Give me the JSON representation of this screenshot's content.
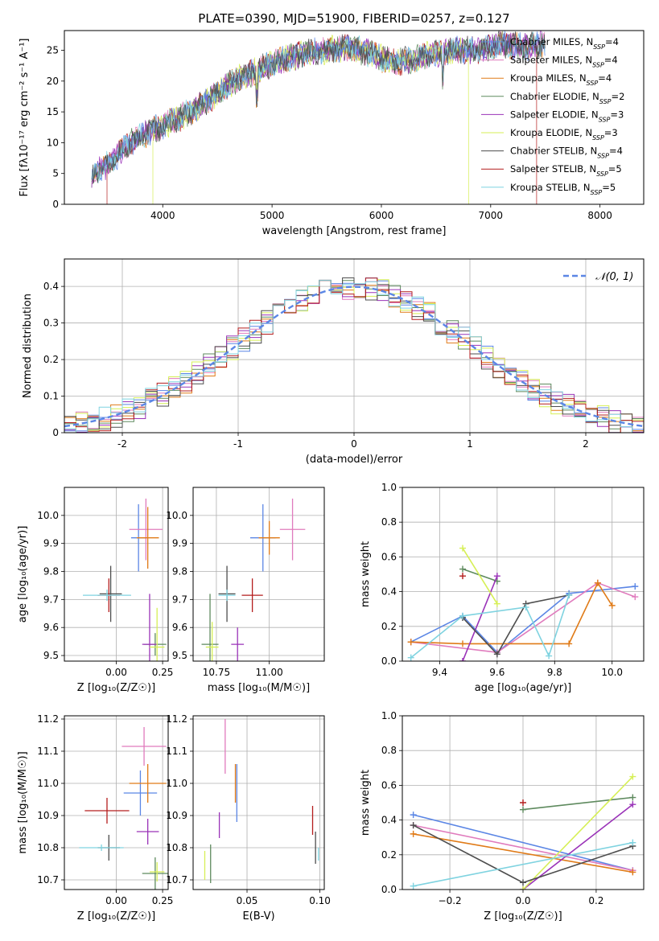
{
  "figure_title": "PLATE=0390, MJD=51900, FIBERID=0257, z=0.127",
  "colors": {
    "Chabrier MILES": "#5b86e5",
    "Salpeter MILES": "#e07bbd",
    "Kroupa MILES": "#e07b18",
    "Chabrier ELODIE": "#5e8a5e",
    "Salpeter ELODIE": "#9a33b8",
    "Kroupa ELODIE": "#d6ef56",
    "Chabrier STELIB": "#4d4d4d",
    "Salpeter STELIB": "#b41d1d",
    "Kroupa STELIB": "#7fd3e0"
  },
  "chart_data": [
    {
      "id": "spectrum",
      "type": "line",
      "title": "PLATE=0390, MJD=51900, FIBERID=0257, z=0.127",
      "xlabel": "wavelength [Angstrom, rest frame]",
      "ylabel": "Flux [fλ10⁻¹⁷ erg cm⁻² s⁻¹ A⁻¹]",
      "xlim": [
        3100,
        8400
      ],
      "ylim": [
        0,
        28.2
      ],
      "xticks": [
        4000,
        5000,
        6000,
        7000,
        8000
      ],
      "yticks": [
        0,
        5,
        10,
        15,
        20,
        25
      ],
      "grid": false,
      "legend_position": "top-right",
      "continuum": {
        "x": [
          3350,
          3500,
          3700,
          3900,
          4100,
          4300,
          4500,
          4700,
          4900,
          5100,
          5300,
          5500,
          5700,
          5900,
          6100,
          6300,
          6500,
          6700,
          6900,
          7100,
          7300,
          7500
        ],
        "y": [
          5,
          6.5,
          10,
          12,
          13.5,
          15.5,
          18,
          20.5,
          22,
          23.5,
          24.5,
          25,
          25.5,
          24.5,
          23,
          23.5,
          24.5,
          25,
          25,
          26,
          25.5,
          26
        ]
      },
      "cutoffs": {
        "Kroupa ELODIE": [
          3910,
          6800
        ],
        "Salpeter STELIB": [
          3490,
          7420
        ]
      },
      "series": [
        {
          "name": "Chabrier MILES",
          "n_ssp": "4"
        },
        {
          "name": "Salpeter MILES",
          "n_ssp": "4"
        },
        {
          "name": "Kroupa MILES",
          "n_ssp": "4"
        },
        {
          "name": "Chabrier ELODIE",
          "n_ssp": "2"
        },
        {
          "name": "Salpeter ELODIE",
          "n_ssp": "3"
        },
        {
          "name": "Kroupa ELODIE",
          "n_ssp": "3"
        },
        {
          "name": "Chabrier STELIB",
          "n_ssp": "4"
        },
        {
          "name": "Salpeter STELIB",
          "n_ssp": "5"
        },
        {
          "name": "Kroupa STELIB",
          "n_ssp": "5"
        }
      ]
    },
    {
      "id": "residuals",
      "type": "line",
      "xlabel": "(data-model)/error",
      "ylabel": "Normed distribution",
      "xlim": [
        -2.5,
        2.5
      ],
      "ylim": [
        0,
        0.475
      ],
      "xticks": [
        -2,
        -1,
        0,
        1,
        2
      ],
      "yticks": [
        0.0,
        0.1,
        0.2,
        0.3,
        0.4
      ],
      "grid": true,
      "legend_position": "top-right",
      "reference": {
        "name": "𝒩(0, 1)",
        "mean": 0,
        "sigma": 1
      },
      "hist": {
        "bin_width": 0.1,
        "xmin": -2.5,
        "xmax": 2.5
      }
    },
    {
      "id": "age_vs_Z",
      "type": "scatter",
      "xlabel": "Z [log₁₀(Z/Z☉)]",
      "ylabel": "age  [log₁₀(age/yr)]",
      "xlim": [
        -0.28,
        0.28
      ],
      "ylim": [
        9.48,
        10.1
      ],
      "xticks": [
        "0.00",
        "0.25"
      ],
      "yticks": [
        "9.5",
        "9.6",
        "9.7",
        "9.8",
        "9.9",
        "10.0"
      ],
      "grid": true,
      "points": [
        {
          "series": "Chabrier MILES",
          "x": 0.12,
          "y": 9.92,
          "xerr": 0.04,
          "yerr": 0.12
        },
        {
          "series": "Salpeter MILES",
          "x": 0.16,
          "y": 9.95,
          "xerr": 0.09,
          "yerr": 0.11
        },
        {
          "series": "Kroupa MILES",
          "x": 0.17,
          "y": 9.92,
          "xerr": 0.06,
          "yerr": 0.11
        },
        {
          "series": "Chabrier ELODIE",
          "x": 0.21,
          "y": 9.54,
          "xerr": 0.06,
          "yerr": 0.04
        },
        {
          "series": "Salpeter ELODIE",
          "x": 0.18,
          "y": 9.54,
          "xerr": 0.04,
          "yerr": 0.18
        },
        {
          "series": "Kroupa ELODIE",
          "x": 0.22,
          "y": 9.53,
          "xerr": 0.04,
          "yerr": 0.14
        },
        {
          "series": "Chabrier STELIB",
          "x": -0.03,
          "y": 9.72,
          "xerr": 0.06,
          "yerr": 0.1
        },
        {
          "series": "Salpeter STELIB",
          "x": -0.04,
          "y": 9.715,
          "xerr": 0.06,
          "yerr": 0.06
        },
        {
          "series": "Kroupa STELIB",
          "x": -0.05,
          "y": 9.715,
          "xerr": 0.13,
          "yerr": 0.02
        }
      ]
    },
    {
      "id": "age_vs_mass",
      "type": "scatter",
      "xlabel": "mass [log₁₀(M/M☉)]",
      "ylabel": "",
      "xlim": [
        10.64,
        11.26
      ],
      "ylim": [
        9.48,
        10.1
      ],
      "xticks": [
        "10.75",
        "11.00"
      ],
      "yticks": [
        "9.5",
        "9.6",
        "9.7",
        "9.8",
        "9.9",
        "10.0"
      ],
      "grid": true,
      "points": [
        {
          "series": "Chabrier MILES",
          "x": 10.97,
          "y": 9.92,
          "xerr": 0.06,
          "yerr": 0.12
        },
        {
          "series": "Salpeter MILES",
          "x": 11.11,
          "y": 9.95,
          "xerr": 0.06,
          "yerr": 0.11
        },
        {
          "series": "Kroupa MILES",
          "x": 11.0,
          "y": 9.92,
          "xerr": 0.05,
          "yerr": 0.06
        },
        {
          "series": "Chabrier ELODIE",
          "x": 10.72,
          "y": 9.54,
          "xerr": 0.04,
          "yerr": 0.18
        },
        {
          "series": "Salpeter ELODIE",
          "x": 10.85,
          "y": 9.54,
          "xerr": 0.03,
          "yerr": 0.06
        },
        {
          "series": "Kroupa ELODIE",
          "x": 10.73,
          "y": 9.53,
          "xerr": 0.03,
          "yerr": 0.09
        },
        {
          "series": "Chabrier STELIB",
          "x": 10.8,
          "y": 9.72,
          "xerr": 0.04,
          "yerr": 0.1
        },
        {
          "series": "Salpeter STELIB",
          "x": 10.92,
          "y": 9.715,
          "xerr": 0.05,
          "yerr": 0.06
        },
        {
          "series": "Kroupa STELIB",
          "x": 10.8,
          "y": 9.715,
          "xerr": 0.04,
          "yerr": 0.02
        }
      ]
    },
    {
      "id": "weight_vs_age",
      "type": "line",
      "xlabel": "age  [log₁₀(age/yr)]",
      "ylabel": "mass weight",
      "xlim": [
        9.27,
        10.11
      ],
      "ylim": [
        0,
        1.0
      ],
      "xticks": [
        "9.4",
        "9.6",
        "9.8",
        "10.0"
      ],
      "yticks": [
        "0.0",
        "0.2",
        "0.4",
        "0.6",
        "0.8",
        "1.0"
      ],
      "grid": true,
      "series": [
        {
          "name": "Chabrier MILES",
          "x": [
            9.3,
            9.48,
            9.6,
            9.85,
            10.08
          ],
          "y": [
            0.11,
            0.26,
            0.05,
            0.39,
            0.43
          ]
        },
        {
          "name": "Salpeter MILES",
          "x": [
            9.3,
            9.6,
            9.95,
            10.08
          ],
          "y": [
            0.11,
            0.05,
            0.45,
            0.37
          ]
        },
        {
          "name": "Kroupa MILES",
          "x": [
            9.3,
            9.48,
            9.85,
            9.95,
            10.0
          ],
          "y": [
            0.11,
            0.1,
            0.1,
            0.45,
            0.32
          ]
        },
        {
          "name": "Chabrier ELODIE",
          "x": [
            9.48,
            9.6
          ],
          "y": [
            0.53,
            0.46
          ]
        },
        {
          "name": "Salpeter ELODIE",
          "x": [
            9.48,
            9.6
          ],
          "y": [
            0.0,
            0.49
          ]
        },
        {
          "name": "Kroupa ELODIE",
          "x": [
            9.48,
            9.6
          ],
          "y": [
            0.65,
            0.33
          ]
        },
        {
          "name": "Chabrier STELIB",
          "x": [
            9.48,
            9.6,
            9.7,
            9.85
          ],
          "y": [
            0.25,
            0.04,
            0.33,
            0.38
          ]
        },
        {
          "name": "Salpeter STELIB",
          "x": [
            9.48
          ],
          "y": [
            0.49
          ]
        },
        {
          "name": "Kroupa STELIB",
          "x": [
            9.3,
            9.48,
            9.7,
            9.78,
            9.85
          ],
          "y": [
            0.02,
            0.26,
            0.31,
            0.03,
            0.38
          ]
        }
      ]
    },
    {
      "id": "mass_vs_Z",
      "type": "scatter",
      "xlabel": "Z [log₁₀(Z/Z☉)]",
      "ylabel": "mass [log₁₀(M/M☉)]",
      "xlim": [
        -0.28,
        0.28
      ],
      "ylim": [
        10.67,
        11.21
      ],
      "xticks": [
        "0.00",
        "0.25"
      ],
      "yticks": [
        "10.7",
        "10.8",
        "10.9",
        "11.0",
        "11.1",
        "11.2"
      ],
      "grid": true,
      "points": [
        {
          "series": "Chabrier MILES",
          "x": 0.13,
          "y": 10.97,
          "xerr": 0.09,
          "yerr": 0.07
        },
        {
          "series": "Salpeter MILES",
          "x": 0.15,
          "y": 11.115,
          "xerr": 0.12,
          "yerr": 0.06
        },
        {
          "series": "Kroupa MILES",
          "x": 0.17,
          "y": 11.0,
          "xerr": 0.1,
          "yerr": 0.06
        },
        {
          "series": "Chabrier ELODIE",
          "x": 0.21,
          "y": 10.72,
          "xerr": 0.07,
          "yerr": 0.05
        },
        {
          "series": "Salpeter ELODIE",
          "x": 0.17,
          "y": 10.85,
          "xerr": 0.06,
          "yerr": 0.04
        },
        {
          "series": "Kroupa ELODIE",
          "x": 0.22,
          "y": 10.725,
          "xerr": 0.04,
          "yerr": 0.03
        },
        {
          "series": "Chabrier STELIB",
          "x": -0.04,
          "y": 10.8,
          "xerr": 0.06,
          "yerr": 0.04
        },
        {
          "series": "Salpeter STELIB",
          "x": -0.05,
          "y": 10.915,
          "xerr": 0.12,
          "yerr": 0.04
        },
        {
          "series": "Kroupa STELIB",
          "x": -0.08,
          "y": 10.8,
          "xerr": 0.12,
          "yerr": 0.01
        }
      ]
    },
    {
      "id": "mass_vs_ebv",
      "type": "scatter",
      "xlabel": "E(B-V)",
      "ylabel": "",
      "xlim": [
        0.013,
        0.103
      ],
      "ylim": [
        10.67,
        11.21
      ],
      "xticks": [
        "0.05",
        "0.10"
      ],
      "yticks": [
        "10.7",
        "10.8",
        "10.9",
        "11.0",
        "11.1",
        "11.2"
      ],
      "grid": true,
      "points": [
        {
          "series": "Chabrier MILES",
          "x": 0.043,
          "y": 10.97,
          "xerr": 0,
          "yerr": 0.09
        },
        {
          "series": "Salpeter MILES",
          "x": 0.035,
          "y": 11.115,
          "xerr": 0,
          "yerr": 0.085
        },
        {
          "series": "Kroupa MILES",
          "x": 0.042,
          "y": 11.0,
          "xerr": 0,
          "yerr": 0.06
        },
        {
          "series": "Chabrier ELODIE",
          "x": 0.025,
          "y": 10.75,
          "xerr": 0,
          "yerr": 0.06
        },
        {
          "series": "Salpeter ELODIE",
          "x": 0.031,
          "y": 10.87,
          "xerr": 0,
          "yerr": 0.04
        },
        {
          "series": "Kroupa ELODIE",
          "x": 0.021,
          "y": 10.745,
          "xerr": 0,
          "yerr": 0.045
        },
        {
          "series": "Chabrier STELIB",
          "x": 0.097,
          "y": 10.8,
          "xerr": 0,
          "yerr": 0.05
        },
        {
          "series": "Salpeter STELIB",
          "x": 0.095,
          "y": 10.885,
          "xerr": 0,
          "yerr": 0.045
        },
        {
          "series": "Kroupa STELIB",
          "x": 0.099,
          "y": 10.78,
          "xerr": 0,
          "yerr": 0.02
        }
      ]
    },
    {
      "id": "weight_vs_Z",
      "type": "line",
      "xlabel": "Z [log₁₀(Z/Z☉)]",
      "ylabel": "mass weight",
      "xlim": [
        -0.33,
        0.33
      ],
      "ylim": [
        0,
        1.0
      ],
      "xticks": [
        "−0.2",
        "0.0",
        "0.2"
      ],
      "yticks": [
        "0.0",
        "0.2",
        "0.4",
        "0.6",
        "0.8",
        "1.0"
      ],
      "grid": true,
      "series": [
        {
          "name": "Chabrier MILES",
          "x": [
            -0.3,
            0.3
          ],
          "y": [
            0.43,
            0.11
          ]
        },
        {
          "name": "Salpeter MILES",
          "x": [
            -0.3,
            0.3
          ],
          "y": [
            0.37,
            0.11
          ]
        },
        {
          "name": "Kroupa MILES",
          "x": [
            -0.3,
            0.3
          ],
          "y": [
            0.32,
            0.1
          ]
        },
        {
          "name": "Chabrier ELODIE",
          "x": [
            0.0,
            0.3
          ],
          "y": [
            0.46,
            0.53
          ]
        },
        {
          "name": "Salpeter ELODIE",
          "x": [
            0.0,
            0.3
          ],
          "y": [
            0.0,
            0.49
          ]
        },
        {
          "name": "Kroupa ELODIE",
          "x": [
            0.0,
            0.3
          ],
          "y": [
            0.0,
            0.65
          ]
        },
        {
          "name": "Chabrier STELIB",
          "x": [
            -0.3,
            0.0,
            0.3
          ],
          "y": [
            0.37,
            0.04,
            0.25
          ]
        },
        {
          "name": "Salpeter STELIB",
          "x": [
            0.0
          ],
          "y": [
            0.5
          ]
        },
        {
          "name": "Kroupa STELIB",
          "x": [
            -0.3,
            0.3
          ],
          "y": [
            0.02,
            0.27
          ]
        }
      ]
    }
  ]
}
